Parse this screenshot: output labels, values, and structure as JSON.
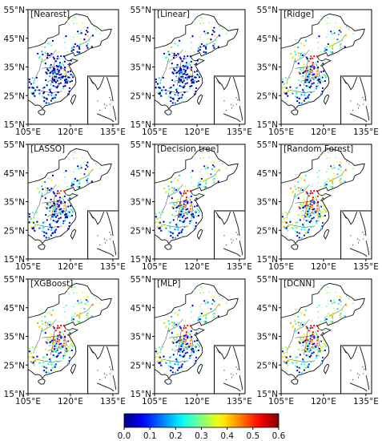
{
  "chart_data": {
    "type": "map",
    "panels": [
      {
        "title": "[Nearest]",
        "style": "blue-dominant"
      },
      {
        "title": "[Linear]",
        "style": "blue-dominant"
      },
      {
        "title": "[Ridge]",
        "style": "mixed"
      },
      {
        "title": "[LASSO]",
        "style": "blue-mixed"
      },
      {
        "title": "[Decision tree]",
        "style": "mixed"
      },
      {
        "title": "[Random Forest]",
        "style": "warm"
      },
      {
        "title": "[XGBoost]",
        "style": "warm"
      },
      {
        "title": "[MLP]",
        "style": "mixed"
      },
      {
        "title": "[DCNN]",
        "style": "warm"
      }
    ],
    "x_ticks": [
      "105°E",
      "120°E",
      "135°E"
    ],
    "y_ticks": [
      "55°N",
      "45°N",
      "35°N",
      "25°N",
      "15°N"
    ],
    "colorbar": {
      "ticks": [
        "0.0",
        "0.1",
        "0.2",
        "0.3",
        "0.4",
        "0.5",
        "0.6"
      ],
      "range": [
        0.0,
        0.6
      ],
      "colormap": "jet"
    }
  }
}
